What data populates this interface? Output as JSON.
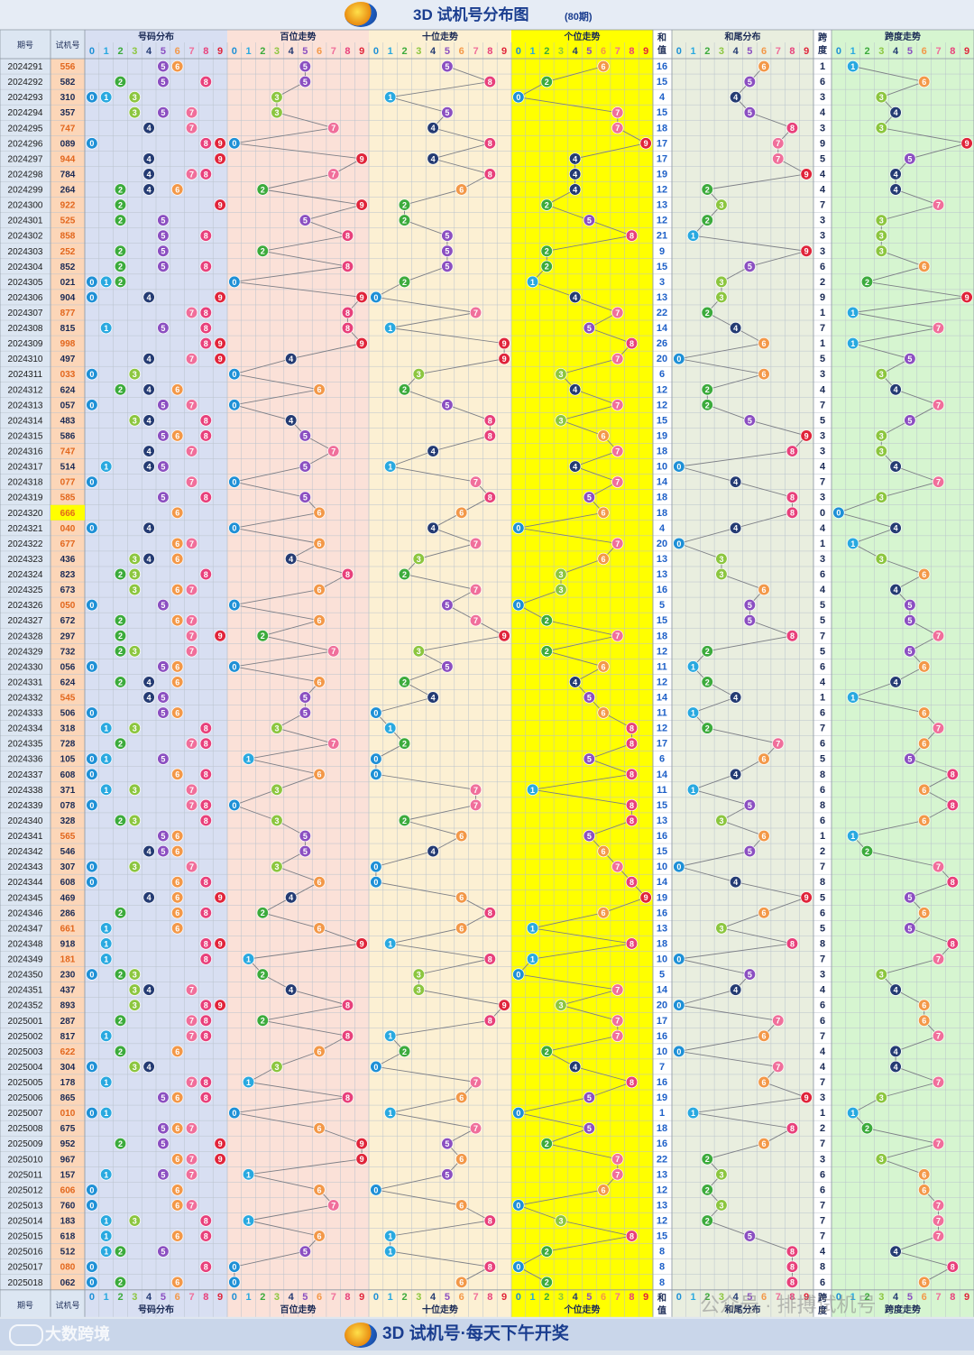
{
  "header": {
    "title": "3D 试机号分布图",
    "subtitle": "(80期)"
  },
  "footer": {
    "brand": "大数跨境",
    "slogan": "3D 试机号·每天下午开奖",
    "watermark": "公众号 · 排搏试机号"
  },
  "colors": {
    "d0": "#1e90d6",
    "d1": "#29a9e0",
    "d2": "#3cab3c",
    "d3": "#8cc63f",
    "d4": "#243b73",
    "d5": "#8b4fc1",
    "d6": "#f39848",
    "d7": "#f06f9b",
    "d8": "#e8407b",
    "d9": "#e0243a",
    "trial": "#e2661c",
    "highlight": "#ffff00"
  },
  "chart_data": {
    "type": "table",
    "columns": {
      "period": "期号",
      "trial": "试机号",
      "g1": "号码分布",
      "g2": "百位走势",
      "g3": "十位走势",
      "g4": "个位走势",
      "sum_top": "和",
      "sum_bottom": "值",
      "g5": "和尾分布",
      "span_top": "跨",
      "span_bottom": "度",
      "g6": "跨度走势"
    },
    "digits": [
      "0",
      "1",
      "2",
      "3",
      "4",
      "5",
      "6",
      "7",
      "8",
      "9"
    ],
    "periods": [
      "2024291",
      "2024292",
      "2024293",
      "2024294",
      "2024295",
      "2024296",
      "2024297",
      "2024298",
      "2024299",
      "2024300",
      "2024301",
      "2024302",
      "2024303",
      "2024304",
      "2024305",
      "2024306",
      "2024307",
      "2024308",
      "2024309",
      "2024310",
      "2024311",
      "2024312",
      "2024313",
      "2024314",
      "2024315",
      "2024316",
      "2024317",
      "2024318",
      "2024319",
      "2024320",
      "2024321",
      "2024322",
      "2024323",
      "2024324",
      "2024325",
      "2024326",
      "2024327",
      "2024328",
      "2024329",
      "2024330",
      "2024331",
      "2024332",
      "2024333",
      "2024334",
      "2024335",
      "2024336",
      "2024337",
      "2024338",
      "2024339",
      "2024340",
      "2024341",
      "2024342",
      "2024343",
      "2024344",
      "2024345",
      "2024346",
      "2024347",
      "2024348",
      "2024349",
      "2024350",
      "2024351",
      "2024352",
      "2025001",
      "2025002",
      "2025003",
      "2025004",
      "2025005",
      "2025006",
      "2025007",
      "2025008",
      "2025009",
      "2025010",
      "2025011",
      "2025012",
      "2025013",
      "2025014",
      "2025015",
      "2025016",
      "2025017",
      "2025018"
    ],
    "numbers": [
      "556",
      "582",
      "310",
      "357",
      "747",
      "089",
      "944",
      "784",
      "264",
      "922",
      "525",
      "858",
      "252",
      "852",
      "021",
      "904",
      "877",
      "815",
      "998",
      "497",
      "033",
      "624",
      "057",
      "483",
      "586",
      "747",
      "514",
      "077",
      "585",
      "666",
      "040",
      "677",
      "436",
      "823",
      "673",
      "050",
      "672",
      "297",
      "732",
      "056",
      "624",
      "545",
      "506",
      "318",
      "728",
      "105",
      "608",
      "371",
      "078",
      "328",
      "565",
      "546",
      "307",
      "608",
      "469",
      "286",
      "661",
      "918",
      "181",
      "230",
      "437",
      "893",
      "287",
      "817",
      "622",
      "304",
      "178",
      "865",
      "010",
      "675",
      "952",
      "967",
      "157",
      "606",
      "760",
      "183",
      "618",
      "512",
      "080",
      "062"
    ],
    "sums": [
      16,
      15,
      4,
      15,
      18,
      17,
      17,
      19,
      12,
      13,
      12,
      21,
      9,
      15,
      3,
      13,
      22,
      14,
      26,
      20,
      6,
      12,
      12,
      15,
      19,
      18,
      10,
      14,
      18,
      18,
      4,
      20,
      13,
      13,
      16,
      5,
      15,
      18,
      12,
      11,
      12,
      14,
      11,
      12,
      17,
      6,
      14,
      11,
      15,
      13,
      16,
      15,
      10,
      14,
      19,
      16,
      13,
      18,
      10,
      5,
      14,
      20,
      17,
      16,
      10,
      7,
      16,
      19,
      1,
      18,
      16,
      22,
      13,
      12,
      13,
      12,
      15,
      8,
      8,
      8
    ],
    "spans": [
      1,
      6,
      3,
      4,
      3,
      9,
      5,
      4,
      4,
      7,
      3,
      3,
      3,
      6,
      2,
      9,
      1,
      7,
      1,
      5,
      3,
      4,
      7,
      5,
      3,
      3,
      4,
      7,
      3,
      0,
      4,
      1,
      3,
      6,
      4,
      5,
      5,
      7,
      5,
      6,
      4,
      1,
      6,
      7,
      6,
      5,
      8,
      6,
      8,
      6,
      1,
      2,
      7,
      8,
      5,
      6,
      5,
      8,
      7,
      3,
      4,
      6,
      6,
      7,
      4,
      4,
      7,
      3,
      1,
      2,
      7,
      3,
      6,
      6,
      7,
      7,
      7,
      4,
      8,
      6
    ]
  }
}
